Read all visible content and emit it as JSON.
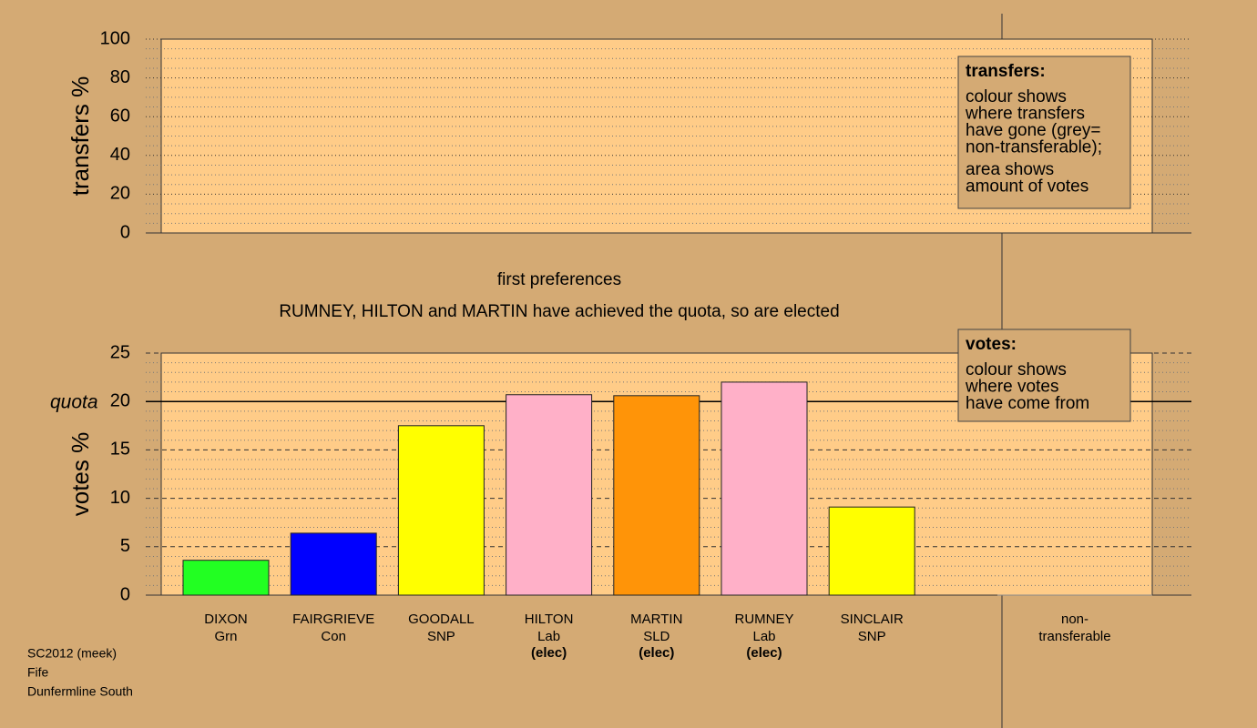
{
  "chart_data": [
    {
      "type": "bar",
      "ylabel": "transfers %",
      "ylim": [
        0,
        100
      ],
      "yticks": [
        0,
        20,
        40,
        60,
        80,
        100
      ],
      "legend": {
        "title": "transfers:",
        "lines": [
          "colour shows",
          "where transfers",
          "have gone (grey=",
          "non-transferable);",
          "area shows",
          "amount of votes"
        ]
      }
    },
    {
      "type": "bar",
      "title": "first preferences",
      "subtitle": "RUMNEY, HILTON and MARTIN have achieved the quota, so are elected",
      "ylabel": "votes %",
      "ylim": [
        0,
        25
      ],
      "yticks": [
        0,
        5,
        10,
        15,
        20,
        25
      ],
      "quota": {
        "value": 20,
        "label": "quota"
      },
      "categories": [
        "DIXON",
        "FAIRGRIEVE",
        "GOODALL",
        "HILTON",
        "MARTIN",
        "RUMNEY",
        "SINCLAIR",
        "non-"
      ],
      "parties": [
        "Grn",
        "Con",
        "SNP",
        "Lab",
        "SLD",
        "Lab",
        "SNP",
        "transferable"
      ],
      "notes": [
        null,
        null,
        null,
        "(elec)",
        "(elec)",
        "(elec)",
        null,
        null
      ],
      "values": [
        3.6,
        6.4,
        17.5,
        20.7,
        20.6,
        22.0,
        9.1,
        0
      ],
      "colors": [
        "#22ff22",
        "#0000ff",
        "#ffff00",
        "#ffb0c8",
        "#ff9408",
        "#ffb0c8",
        "#ffff00",
        "#888888"
      ],
      "legend": {
        "title": "votes:",
        "lines": [
          "colour shows",
          "where votes",
          "have come from"
        ]
      }
    }
  ],
  "footer": [
    "SC2012 (meek)",
    "Fife",
    "Dunfermline South"
  ]
}
